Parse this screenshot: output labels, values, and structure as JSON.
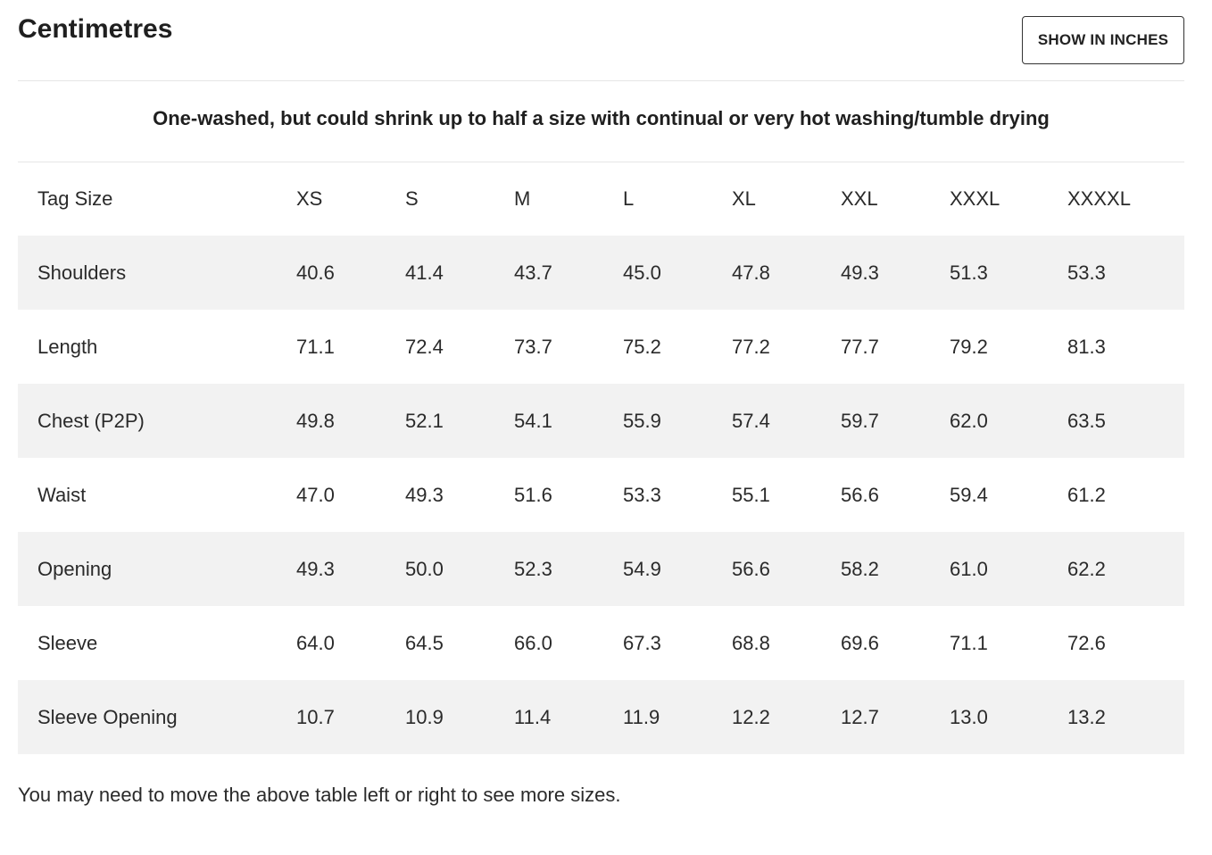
{
  "title": "Centimetres",
  "unit_toggle_label": "SHOW IN INCHES",
  "note": "One-washed, but could shrink up to half a size with continual or very hot washing/tumble drying",
  "table": {
    "header": [
      "Tag Size",
      "XS",
      "S",
      "M",
      "L",
      "XL",
      "XXL",
      "XXXL",
      "XXXXL"
    ],
    "rows": [
      [
        "Shoulders",
        "40.6",
        "41.4",
        "43.7",
        "45.0",
        "47.8",
        "49.3",
        "51.3",
        "53.3"
      ],
      [
        "Length",
        "71.1",
        "72.4",
        "73.7",
        "75.2",
        "77.2",
        "77.7",
        "79.2",
        "81.3"
      ],
      [
        "Chest (P2P)",
        "49.8",
        "52.1",
        "54.1",
        "55.9",
        "57.4",
        "59.7",
        "62.0",
        "63.5"
      ],
      [
        "Waist",
        "47.0",
        "49.3",
        "51.6",
        "53.3",
        "55.1",
        "56.6",
        "59.4",
        "61.2"
      ],
      [
        "Opening",
        "49.3",
        "50.0",
        "52.3",
        "54.9",
        "56.6",
        "58.2",
        "61.0",
        "62.2"
      ],
      [
        "Sleeve",
        "64.0",
        "64.5",
        "66.0",
        "67.3",
        "68.8",
        "69.6",
        "71.1",
        "72.6"
      ],
      [
        "Sleeve Opening",
        "10.7",
        "10.9",
        "11.4",
        "11.9",
        "12.2",
        "12.7",
        "13.0",
        "13.2"
      ]
    ]
  },
  "footer_note": "You may need to move the above table left or right to see more sizes.",
  "colors": {
    "text": "#222222",
    "stripe": "#f2f2f2",
    "divider": "#e6e6e6",
    "button_border": "#333333"
  }
}
